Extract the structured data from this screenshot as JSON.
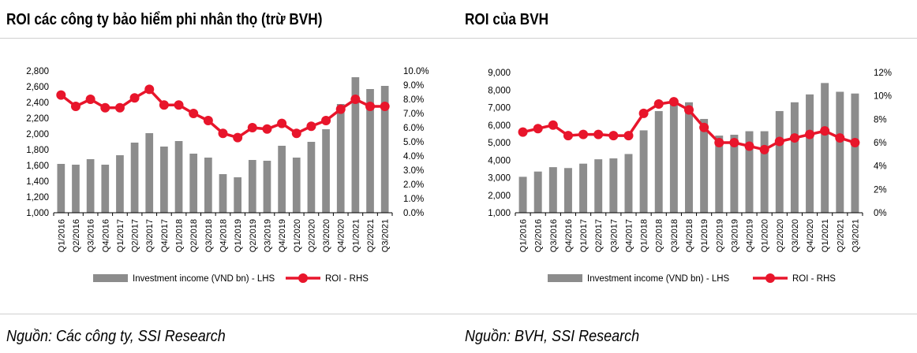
{
  "left": {
    "title": "ROI các công ty bảo hiểm phi nhân thọ (trừ BVH)",
    "source": "Nguồn: Các công ty, SSI Research",
    "chart_data": {
      "type": "bar+line",
      "categories": [
        "Q1/2016",
        "Q2/2016",
        "Q3/2016",
        "Q4/2016",
        "Q1/2017",
        "Q2/2017",
        "Q3/2017",
        "Q4/2017",
        "Q1/2018",
        "Q2/2018",
        "Q3/2018",
        "Q4/2018",
        "Q1/2019",
        "Q2/2019",
        "Q3/2019",
        "Q4/2019",
        "Q1/2020",
        "Q2/2020",
        "Q3/2020",
        "Q4/2020",
        "Q1/2021",
        "Q2/2021",
        "Q3/2021"
      ],
      "series": [
        {
          "name": "Investment income (VND bn) - LHS",
          "kind": "bar",
          "axis": "left",
          "color": "#8c8c8c",
          "values": [
            1620,
            1610,
            1680,
            1610,
            1730,
            1890,
            2010,
            1840,
            1910,
            1750,
            1700,
            1490,
            1450,
            1670,
            1660,
            1850,
            1700,
            1900,
            2060,
            2380,
            2720,
            2570,
            2610
          ]
        },
        {
          "name": "ROI - RHS",
          "kind": "line",
          "axis": "right",
          "color": "#e8152b",
          "values": [
            8.3,
            7.5,
            8.0,
            7.4,
            7.4,
            8.1,
            8.7,
            7.6,
            7.6,
            7.0,
            6.5,
            5.6,
            5.3,
            6.0,
            5.9,
            6.3,
            5.6,
            6.1,
            6.5,
            7.3,
            8.0,
            7.5,
            7.5
          ]
        }
      ],
      "ylim_left": [
        1000,
        2800
      ],
      "yticks_left": [
        "1,000",
        "1,200",
        "1,400",
        "1,600",
        "1,800",
        "2,000",
        "2,200",
        "2,400",
        "2,600",
        "2,800"
      ],
      "ylim_right": [
        0,
        10
      ],
      "yticks_right": [
        "0.0%",
        "1.0%",
        "2.0%",
        "3.0%",
        "4.0%",
        "5.0%",
        "6.0%",
        "7.0%",
        "8.0%",
        "9.0%",
        "10.0%"
      ],
      "legend_position": "bottom"
    }
  },
  "right": {
    "title": "ROI của BVH",
    "source": "Nguồn: BVH, SSI Research",
    "chart_data": {
      "type": "bar+line",
      "categories": [
        "Q1/2016",
        "Q2/2016",
        "Q3/2016",
        "Q4/2016",
        "Q1/2017",
        "Q2/2017",
        "Q3/2017",
        "Q4/2017",
        "Q1/2018",
        "Q2/2018",
        "Q3/2018",
        "Q4/2018",
        "Q1/2019",
        "Q2/2019",
        "Q3/2019",
        "Q4/2019",
        "Q1/2020",
        "Q2/2020",
        "Q3/2020",
        "Q4/2020",
        "Q1/2021",
        "Q2/2021",
        "Q3/2021"
      ],
      "series": [
        {
          "name": "Investment income (VND bn) - LHS",
          "kind": "bar",
          "axis": "left",
          "color": "#8c8c8c",
          "values": [
            3050,
            3350,
            3600,
            3550,
            3800,
            4050,
            4100,
            4350,
            5700,
            6800,
            7200,
            7300,
            6350,
            5400,
            5450,
            5650,
            5650,
            6800,
            7300,
            7750,
            8400,
            7900,
            7800
          ]
        },
        {
          "name": "ROI - RHS",
          "kind": "line",
          "axis": "right",
          "color": "#e8152b",
          "values": [
            6.9,
            7.2,
            7.5,
            6.6,
            6.7,
            6.7,
            6.6,
            6.6,
            8.5,
            9.3,
            9.5,
            8.8,
            7.3,
            6.0,
            6.0,
            5.7,
            5.4,
            6.1,
            6.4,
            6.7,
            7.0,
            6.4,
            6.0
          ]
        }
      ],
      "ylim_left": [
        1000,
        9000
      ],
      "yticks_left": [
        "1,000",
        "2,000",
        "3,000",
        "4,000",
        "5,000",
        "6,000",
        "7,000",
        "8,000",
        "9,000"
      ],
      "ylim_right": [
        0,
        12
      ],
      "yticks_right": [
        "0%",
        "2%",
        "4%",
        "6%",
        "8%",
        "10%",
        "12%"
      ],
      "legend_position": "bottom"
    }
  }
}
